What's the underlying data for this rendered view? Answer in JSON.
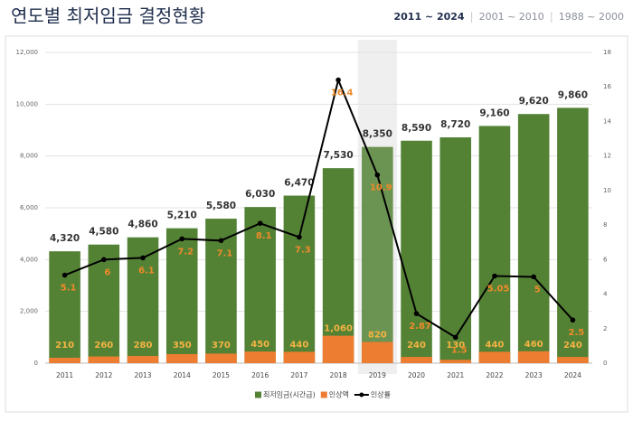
{
  "chart_data": {
    "type": "bar-line",
    "title": "연도별 최저임금 결정현황",
    "tabs": [
      "2011 ~ 2024",
      "2001 ~ 2010",
      "1988 ~ 2000"
    ],
    "categories": [
      "2011",
      "2012",
      "2013",
      "2014",
      "2015",
      "2016",
      "2017",
      "2018",
      "2019",
      "2020",
      "2021",
      "2022",
      "2023",
      "2024"
    ],
    "highlight": "2019",
    "ylim": [
      0,
      12000
    ],
    "yticks": [
      0,
      {
        "value": 2000,
        "label": "2,000"
      },
      {
        "value": 4000,
        "label": "4,000"
      },
      {
        "value": 6000,
        "label": "6,000"
      },
      {
        "value": 8000,
        "label": "8,000"
      },
      {
        "value": 10000,
        "label": "10,000"
      },
      {
        "value": 12000,
        "label": "12,000"
      }
    ],
    "y2lim": [
      0,
      18
    ],
    "y2ticks": [
      0,
      2,
      4,
      6,
      8,
      10,
      12,
      14,
      16,
      18
    ],
    "grid": true,
    "series": [
      {
        "name": "최저임금(시간급)",
        "color": "#548235",
        "values": [
          4320,
          4580,
          4860,
          5210,
          5580,
          6030,
          6470,
          7530,
          8350,
          8590,
          8720,
          9160,
          9620,
          9860
        ],
        "value_labels": [
          "4,320",
          "4,580",
          "4,860",
          "5,210",
          "5,580",
          "6,030",
          "6,470",
          "7,530",
          "8,350",
          "8,590",
          "8,720",
          "9,160",
          "9,620",
          "9,860"
        ]
      },
      {
        "name": "인상액",
        "color": "#ed7d31",
        "values": [
          210,
          260,
          280,
          350,
          370,
          450,
          440,
          1060,
          820,
          240,
          130,
          440,
          460,
          240
        ],
        "value_labels": [
          "210",
          "260",
          "280",
          "350",
          "370",
          "450",
          "440",
          "1,060",
          "820",
          "240",
          "130",
          "440",
          "460",
          "240"
        ]
      },
      {
        "name": "인상률",
        "color": "#000000",
        "axis": "y2",
        "values": [
          5.1,
          6,
          6.1,
          7.2,
          7.1,
          8.1,
          7.3,
          16.4,
          10.9,
          2.87,
          1.5,
          5.05,
          5,
          2.5
        ]
      }
    ]
  }
}
